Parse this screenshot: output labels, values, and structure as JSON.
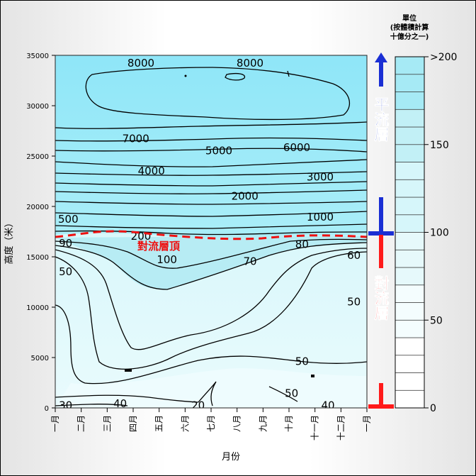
{
  "chart_data": {
    "type": "heatmap",
    "xlabel": "月份",
    "ylabel": "高度（米）",
    "x_ticks": [
      "一月",
      "二月",
      "三月",
      "四月",
      "五月",
      "六月",
      "七月",
      "八月",
      "九月",
      "十月",
      "十一月",
      "十二月",
      "一月"
    ],
    "y_ticks": [
      0,
      5000,
      10000,
      15000,
      20000,
      25000,
      30000,
      35000
    ],
    "ylim": [
      0,
      35000
    ],
    "colorbar": {
      "title_lines": [
        "單位",
        "(按體積計算",
        "十億分之一)"
      ],
      "tick_labels": [
        "0",
        "50",
        "100",
        "150",
        ">200"
      ],
      "range": [
        0,
        200
      ],
      "colors": [
        "#ffffff",
        "#f4fdfe",
        "#e6f9fb",
        "#d6f6fa",
        "#c2f0f6",
        "#a6eaf5"
      ]
    },
    "contour_labels": [
      {
        "text": "8000",
        "month": 3.3,
        "alt": 34300
      },
      {
        "text": "8000",
        "month": 7.5,
        "alt": 34300
      },
      {
        "text": "7000",
        "month": 3.1,
        "alt": 26800
      },
      {
        "text": "6000",
        "month": 9.3,
        "alt": 25900
      },
      {
        "text": "5000",
        "month": 6.3,
        "alt": 25600
      },
      {
        "text": "4000",
        "month": 3.7,
        "alt": 23600
      },
      {
        "text": "3000",
        "month": 10.2,
        "alt": 23000
      },
      {
        "text": "2000",
        "month": 7.3,
        "alt": 21100
      },
      {
        "text": "1000",
        "month": 10.2,
        "alt": 19000
      },
      {
        "text": "500",
        "month": 0.5,
        "alt": 18800
      },
      {
        "text": "200",
        "month": 3.3,
        "alt": 17100
      },
      {
        "text": "100",
        "month": 4.3,
        "alt": 14800
      },
      {
        "text": "90",
        "month": 0.4,
        "alt": 16400
      },
      {
        "text": "80",
        "month": 9.5,
        "alt": 16300
      },
      {
        "text": "70",
        "month": 7.5,
        "alt": 14600
      },
      {
        "text": "60",
        "month": 11.5,
        "alt": 15200
      },
      {
        "text": "50",
        "month": 0.4,
        "alt": 13600
      },
      {
        "text": "50",
        "month": 11.5,
        "alt": 10600
      },
      {
        "text": "50",
        "month": 9.5,
        "alt": 4700
      },
      {
        "text": "50",
        "month": 9.1,
        "alt": 1500
      },
      {
        "text": "40",
        "month": 2.5,
        "alt": 500
      },
      {
        "text": "40",
        "month": 10.5,
        "alt": 300
      },
      {
        "text": "30",
        "month": 0.4,
        "alt": 300
      },
      {
        "text": "20",
        "month": 5.5,
        "alt": 300
      }
    ],
    "tropopause_label": "對流層頂",
    "layers": [
      {
        "name": "平流層",
        "color": "#1a2fd4"
      },
      {
        "name": "對流層",
        "color": "#ff1a1a"
      }
    ]
  }
}
